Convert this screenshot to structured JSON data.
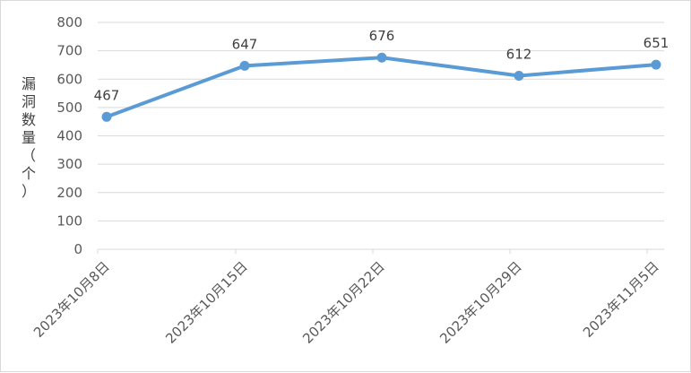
{
  "chart_data": {
    "type": "line",
    "title": "",
    "xlabel": "",
    "ylabel": "漏洞数量（个）",
    "ylabel_chars": [
      "漏",
      "洞",
      "数",
      "量",
      "（",
      "个",
      "）"
    ],
    "categories": [
      "2023年10月8日",
      "2023年10月15日",
      "2023年10月22日",
      "2023年10月29日",
      "2023年11月5日"
    ],
    "series": [
      {
        "values": [
          467,
          647,
          676,
          612,
          651
        ],
        "color": "#5b9bd5"
      }
    ],
    "ylim": [
      0,
      800
    ],
    "yticks": [
      0,
      100,
      200,
      300,
      400,
      500,
      600,
      700,
      800
    ],
    "grid": true,
    "data_labels": true,
    "legend": "none"
  }
}
